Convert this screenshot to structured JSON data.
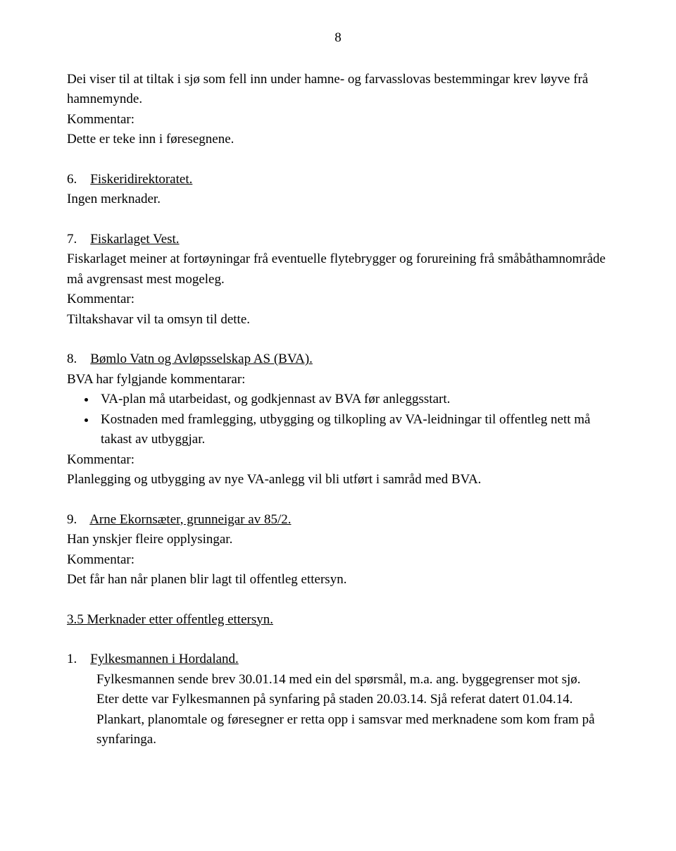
{
  "page": {
    "number": "8"
  },
  "intro": {
    "line1": "Dei viser til at tiltak i sjø som fell inn under hamne- og farvasslovas bestemmingar krev løyve frå hamnemynde.",
    "kommentar_label": "Kommentar:",
    "kommentar_body": "Dette er teke inn i føresegnene."
  },
  "item6": {
    "num": "6.",
    "title": "Fiskeridirektoratet.",
    "body": "Ingen merknader."
  },
  "item7": {
    "num": "7.",
    "title": "Fiskarlaget Vest.",
    "body": "Fiskarlaget meiner at fortøyningar frå eventuelle flytebrygger og forureining frå småbåthamnområde må avgrensast mest mogeleg.",
    "kommentar_label": "Kommentar:",
    "kommentar_body": "Tiltakshavar vil ta omsyn til dette."
  },
  "item8": {
    "num": "8.",
    "title": "Bømlo Vatn og Avløpsselskap AS (BVA).",
    "intro": "BVA har fylgjande kommentarar:",
    "bullet1": "VA-plan må utarbeidast, og godkjennast av  BVA før anleggsstart.",
    "bullet2": "Kostnaden med framlegging, utbygging og tilkopling av VA-leidningar til offentleg nett må takast av utbyggjar.",
    "kommentar_label": "Kommentar:",
    "kommentar_body": "Planlegging og utbygging av nye VA-anlegg vil bli utført i samråd med BVA."
  },
  "item9": {
    "num": "9.",
    "title": "Arne Ekornsæter, grunneigar av 85/2.",
    "body": "Han ynskjer fleire opplysingar.",
    "kommentar_label": "Kommentar:",
    "kommentar_body": "Det får han når planen blir lagt til offentleg ettersyn."
  },
  "sec35": {
    "heading": "3.5 Merknader etter offentleg ettersyn."
  },
  "sec35_item1": {
    "num": "1.",
    "title": "Fylkesmannen i Hordaland.",
    "line1": "Fylkesmannen sende brev 30.01.14 med ein del spørsmål, m.a. ang. byggegrenser mot sjø.",
    "line2": "Eter dette var Fylkesmannen på synfaring på staden 20.03.14. Sjå referat datert 01.04.14.",
    "line3": "Plankart, planomtale og føresegner er retta opp i samsvar med merknadene som kom fram på synfaringa."
  }
}
